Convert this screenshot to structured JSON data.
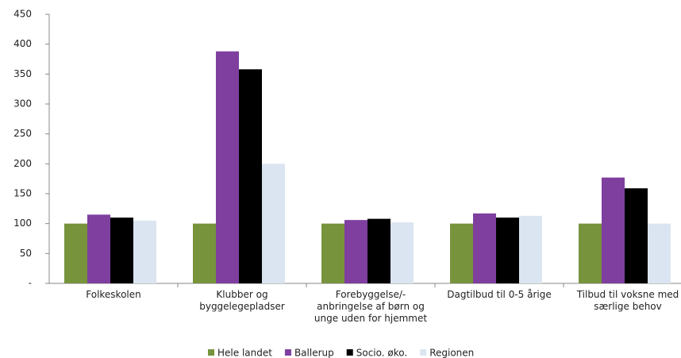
{
  "chart_data": {
    "type": "bar",
    "categories": [
      "Folkeskolen",
      "Klubber og byggelegepladser",
      "Forebyggelse/-anbringelse af børn og unge uden for hjemmet",
      "Dagtilbud til 0-5 årige",
      "Tilbud til voksne med særlige behov"
    ],
    "series": [
      {
        "name": "Hele landet",
        "color": "#77933c",
        "values": [
          100,
          100,
          100,
          100,
          100
        ]
      },
      {
        "name": "Ballerup",
        "color": "#7f3f9f",
        "values": [
          115,
          388,
          106,
          117,
          177
        ]
      },
      {
        "name": "Socio. øko.",
        "color": "#000000",
        "values": [
          110,
          358,
          108,
          110,
          159
        ]
      },
      {
        "name": "Regionen",
        "color": "#dbe5f1",
        "values": [
          105,
          200,
          102,
          113,
          100
        ]
      }
    ],
    "ylim": [
      0,
      450
    ],
    "yticks": [
      {
        "value": 0,
        "label": "-"
      },
      50,
      100,
      150,
      200,
      250,
      300,
      350,
      400,
      450
    ],
    "grid": false,
    "legend": "bottom"
  }
}
